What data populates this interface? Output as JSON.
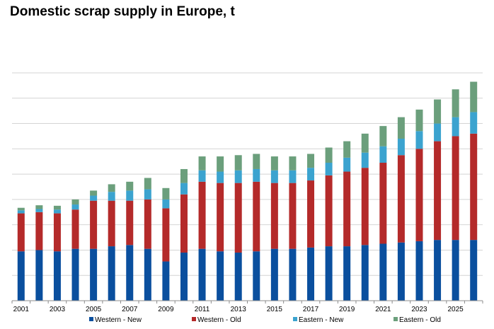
{
  "chart_data": {
    "type": "bar",
    "stacked": true,
    "title": "Domestic scrap supply in Europe, t",
    "xlabel": "",
    "ylabel": "",
    "ylim": [
      0,
      9
    ],
    "grid": true,
    "legend_position": "bottom",
    "categories": [
      "2001",
      "2002",
      "2003",
      "2004",
      "2005",
      "2006",
      "2007",
      "2008",
      "2009",
      "2010",
      "2011",
      "2012",
      "2013",
      "2014",
      "2015",
      "2016",
      "2017",
      "2018",
      "2019",
      "2020",
      "2021",
      "2022",
      "2023",
      "2024",
      "2025",
      "2026"
    ],
    "x_tick_labels": [
      "2001",
      "",
      "2003",
      "",
      "2005",
      "",
      "2007",
      "",
      "2009",
      "",
      "2011",
      "",
      "2013",
      "",
      "2015",
      "",
      "2017",
      "",
      "2019",
      "",
      "2021",
      "",
      "2023",
      "",
      "2025",
      ""
    ],
    "series": [
      {
        "name": "Western - New",
        "color": "#0a4f9e",
        "values": [
          1.95,
          2.0,
          1.95,
          2.05,
          2.05,
          2.15,
          2.2,
          2.05,
          1.55,
          1.9,
          2.05,
          1.95,
          1.9,
          1.95,
          2.05,
          2.05,
          2.1,
          2.15,
          2.15,
          2.2,
          2.25,
          2.3,
          2.35,
          2.4,
          2.4,
          2.4
        ]
      },
      {
        "name": "Western - Old",
        "color": "#b42a2a",
        "values": [
          1.5,
          1.5,
          1.5,
          1.55,
          1.9,
          1.8,
          1.75,
          1.95,
          2.1,
          2.3,
          2.65,
          2.7,
          2.75,
          2.75,
          2.6,
          2.6,
          2.65,
          2.8,
          2.95,
          3.05,
          3.2,
          3.45,
          3.65,
          3.9,
          4.1,
          4.2
        ]
      },
      {
        "name": "Eastern - New",
        "color": "#3ba3cf",
        "values": [
          0.12,
          0.12,
          0.15,
          0.2,
          0.2,
          0.35,
          0.4,
          0.4,
          0.35,
          0.45,
          0.45,
          0.45,
          0.5,
          0.5,
          0.5,
          0.5,
          0.5,
          0.5,
          0.55,
          0.6,
          0.65,
          0.65,
          0.7,
          0.7,
          0.75,
          0.85
        ]
      },
      {
        "name": "Eastern - Old",
        "color": "#6b9f7c",
        "values": [
          0.1,
          0.15,
          0.15,
          0.2,
          0.2,
          0.3,
          0.35,
          0.45,
          0.45,
          0.55,
          0.55,
          0.6,
          0.6,
          0.6,
          0.55,
          0.55,
          0.55,
          0.6,
          0.65,
          0.75,
          0.8,
          0.85,
          0.85,
          0.95,
          1.1,
          1.2
        ]
      }
    ]
  }
}
